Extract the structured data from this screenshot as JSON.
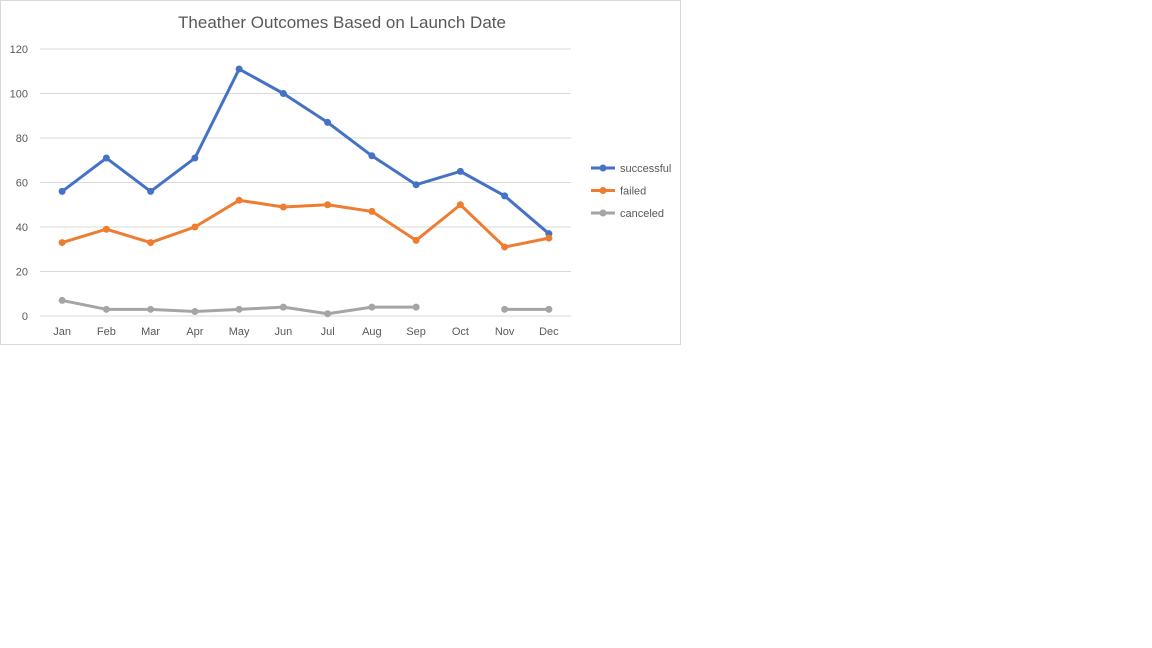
{
  "chart_data": {
    "type": "line",
    "title": "Theather Outcomes Based on Launch Date",
    "xlabel": "",
    "ylabel": "",
    "categories": [
      "Jan",
      "Feb",
      "Mar",
      "Apr",
      "May",
      "Jun",
      "Jul",
      "Aug",
      "Sep",
      "Oct",
      "Nov",
      "Dec"
    ],
    "ylim": [
      0,
      120
    ],
    "yticks": [
      0,
      20,
      40,
      60,
      80,
      100,
      120
    ],
    "grid": true,
    "legend_position": "right",
    "series": [
      {
        "name": "successful",
        "color": "#4472c4",
        "values": [
          56,
          71,
          56,
          71,
          111,
          100,
          87,
          72,
          59,
          65,
          54,
          37
        ]
      },
      {
        "name": "failed",
        "color": "#ed7d31",
        "values": [
          33,
          39,
          33,
          40,
          52,
          49,
          50,
          47,
          34,
          50,
          31,
          35
        ]
      },
      {
        "name": "canceled",
        "color": "#a5a5a5",
        "values": [
          7,
          3,
          3,
          2,
          3,
          4,
          1,
          4,
          4,
          null,
          3,
          3
        ]
      }
    ]
  }
}
